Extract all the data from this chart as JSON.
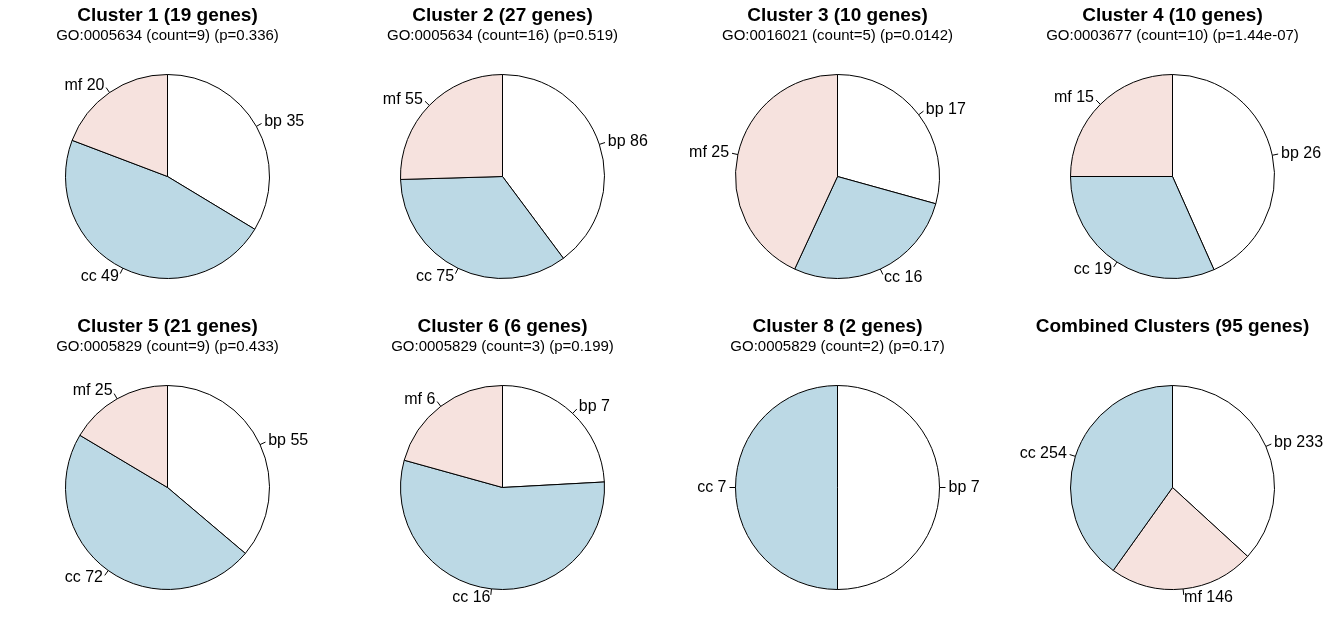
{
  "chart_data": [
    {
      "type": "pie",
      "title": "Cluster 1 (19 genes)",
      "subtitle": "GO:0005634 (count=9) (p=0.336)",
      "categories": [
        "bp",
        "cc",
        "mf"
      ],
      "values": [
        35,
        49,
        20
      ],
      "colors": [
        "#ffffff",
        "#bcd9e5",
        "#f6e2de"
      ],
      "data_labels": true,
      "legend": false
    },
    {
      "type": "pie",
      "title": "Cluster 2 (27 genes)",
      "subtitle": "GO:0005634 (count=16) (p=0.519)",
      "categories": [
        "bp",
        "cc",
        "mf"
      ],
      "values": [
        86,
        75,
        55
      ],
      "colors": [
        "#ffffff",
        "#bcd9e5",
        "#f6e2de"
      ],
      "data_labels": true,
      "legend": false
    },
    {
      "type": "pie",
      "title": "Cluster 3 (10 genes)",
      "subtitle": "GO:0016021 (count=5) (p=0.0142)",
      "categories": [
        "bp",
        "cc",
        "mf"
      ],
      "values": [
        17,
        16,
        25
      ],
      "colors": [
        "#ffffff",
        "#bcd9e5",
        "#f6e2de"
      ],
      "data_labels": true,
      "legend": false
    },
    {
      "type": "pie",
      "title": "Cluster 4 (10 genes)",
      "subtitle": "GO:0003677 (count=10) (p=1.44e-07)",
      "categories": [
        "bp",
        "cc",
        "mf"
      ],
      "values": [
        26,
        19,
        15
      ],
      "colors": [
        "#ffffff",
        "#bcd9e5",
        "#f6e2de"
      ],
      "data_labels": true,
      "legend": false
    },
    {
      "type": "pie",
      "title": "Cluster 5 (21 genes)",
      "subtitle": "GO:0005829 (count=9) (p=0.433)",
      "categories": [
        "bp",
        "cc",
        "mf"
      ],
      "values": [
        55,
        72,
        25
      ],
      "colors": [
        "#ffffff",
        "#bcd9e5",
        "#f6e2de"
      ],
      "data_labels": true,
      "legend": false
    },
    {
      "type": "pie",
      "title": "Cluster 6 (6 genes)",
      "subtitle": "GO:0005829 (count=3) (p=0.199)",
      "categories": [
        "bp",
        "cc",
        "mf"
      ],
      "values": [
        7,
        16,
        6
      ],
      "colors": [
        "#ffffff",
        "#bcd9e5",
        "#f6e2de"
      ],
      "data_labels": true,
      "legend": false
    },
    {
      "type": "pie",
      "title": "Cluster 8 (2 genes)",
      "subtitle": "GO:0005829 (count=2) (p=0.17)",
      "categories": [
        "bp",
        "cc"
      ],
      "values": [
        7,
        7
      ],
      "colors": [
        "#ffffff",
        "#bcd9e5"
      ],
      "data_labels": true,
      "legend": false
    },
    {
      "type": "pie",
      "title": "Combined Clusters (95 genes)",
      "categories": [
        "bp",
        "mf",
        "cc"
      ],
      "values": [
        233,
        146,
        254
      ],
      "colors": [
        "#ffffff",
        "#f6e2de",
        "#bcd9e5"
      ],
      "data_labels": true,
      "legend": false
    }
  ]
}
